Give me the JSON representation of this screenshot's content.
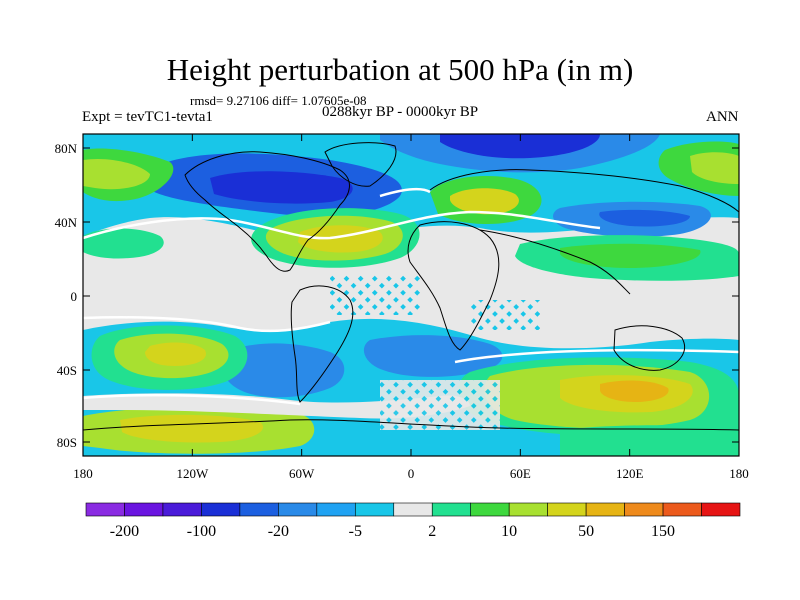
{
  "title": "Height perturbation at 500 hPa (in m)",
  "stats": "rmsd= 9.27106 diff= 1.07605e-08",
  "experiment": "Expt = tevTC1-tevta1",
  "period": "0288kyr BP - 0000kyr BP",
  "season": "ANN",
  "lat_ticks": [
    "80N",
    "40N",
    "0",
    "40S",
    "80S"
  ],
  "lon_ticks": [
    "180",
    "120W",
    "60W",
    "0",
    "60E",
    "120E",
    "180"
  ],
  "colorbar": {
    "colors": [
      "#8a2be2",
      "#6a14e0",
      "#4a1bd9",
      "#1a2fd6",
      "#1c5fe0",
      "#2a8ae8",
      "#1fa2f2",
      "#19c6e8",
      "#e8e8e8",
      "#22e090",
      "#3ed83e",
      "#a8e030",
      "#d4d41c",
      "#e6b414",
      "#ee8a1c",
      "#ec5a1c",
      "#e61414"
    ],
    "labels": [
      "-200",
      "-100",
      "-20",
      "-5",
      "2",
      "10",
      "50",
      "150"
    ]
  },
  "palette": {
    "neutral": "#e8e8e8",
    "light_blue": "#19c6e8",
    "mid_blue": "#2a8ae8",
    "blue": "#1c5fe0",
    "dark_blue": "#1a2fd6",
    "teal": "#22e090",
    "green": "#3ed83e",
    "yellow_green": "#a8e030",
    "yellow": "#d4d41c",
    "orange_yellow": "#e6b414",
    "white": "#ffffff",
    "coast": "#000000"
  }
}
